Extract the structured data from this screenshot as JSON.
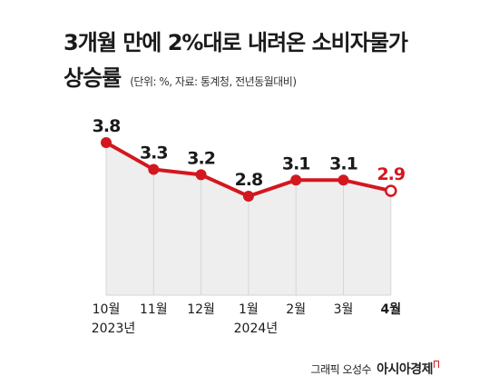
{
  "title": {
    "line1": "3개월 만에 2%대로 내려온 소비자물가",
    "line2": "상승률",
    "note": "(단위: %, 자료: 통계청, 전년동월대비)"
  },
  "colors": {
    "line": "#d3171f",
    "area": "#eeeeee",
    "text": "#1a1a1a",
    "highlight_label": "#d3171f"
  },
  "chart_data": {
    "type": "line",
    "categories": [
      "10월",
      "11월",
      "12월",
      "1월",
      "2월",
      "3월",
      "4월"
    ],
    "year_labels": [
      {
        "category_index": 0,
        "text": "2023년"
      },
      {
        "category_index": 3,
        "text": "2024년"
      }
    ],
    "series": [
      {
        "values": [
          3.8,
          3.3,
          3.2,
          2.8,
          3.1,
          3.1,
          2.9
        ],
        "data_labels": [
          "3.8",
          "3.3",
          "3.2",
          "2.8",
          "3.1",
          "3.1",
          "2.9"
        ]
      }
    ],
    "highlight_index": 6,
    "ylim": [
      0,
      4.2
    ],
    "grid": false,
    "area_fill": true
  },
  "credit": {
    "grapher": "그래픽 오성수",
    "brand": "아시아경제"
  }
}
